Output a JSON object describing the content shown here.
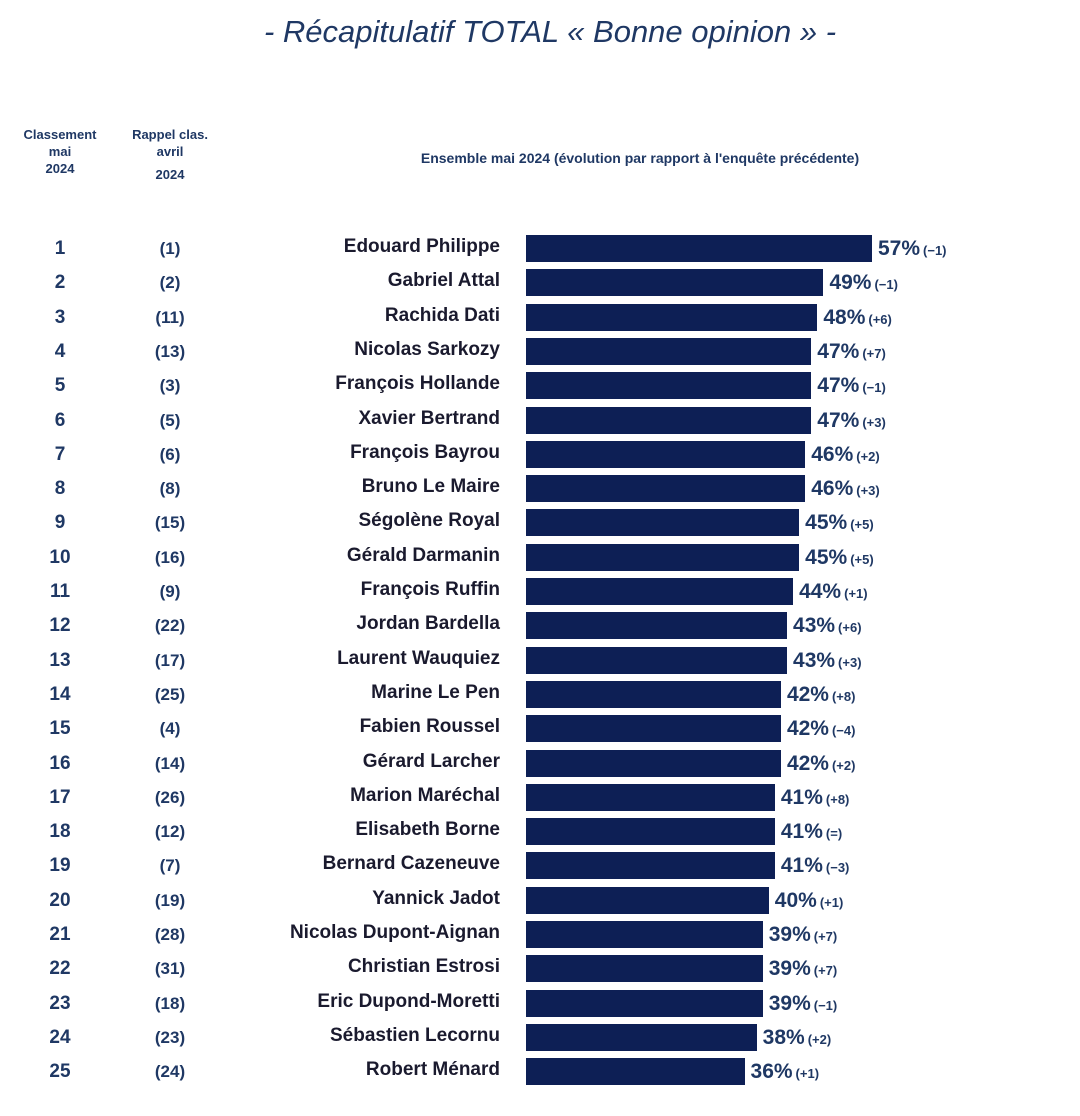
{
  "title": "- Récapitulatif TOTAL « Bonne opinion » -",
  "headers": {
    "rank_l1": "Classement",
    "rank_l2": "mai",
    "rank_l3": "2024",
    "prev_l1": "Rappel clas.",
    "prev_l2": "avril",
    "prev_l3": "2024",
    "set": "Ensemble mai 2024 (évolution par rapport à l'enquête précédente)"
  },
  "colors": {
    "bar": "#0d1f55",
    "text": "#1f3864"
  },
  "chart_data": {
    "type": "bar",
    "orientation": "horizontal",
    "title": "- Récapitulatif TOTAL « Bonne opinion » -",
    "subtitle": "Ensemble mai 2024 (évolution par rapport à l'enquête précédente)",
    "xlim": [
      0,
      57
    ],
    "grid": false,
    "rows": [
      {
        "rank": "1",
        "prev": "(1)",
        "name": "Edouard Philippe",
        "value": 57,
        "evolution": "(−1)"
      },
      {
        "rank": "2",
        "prev": "(2)",
        "name": "Gabriel Attal",
        "value": 49,
        "evolution": "(−1)"
      },
      {
        "rank": "3",
        "prev": "(11)",
        "name": "Rachida Dati",
        "value": 48,
        "evolution": "(+6)"
      },
      {
        "rank": "4",
        "prev": "(13)",
        "name": "Nicolas Sarkozy",
        "value": 47,
        "evolution": "(+7)"
      },
      {
        "rank": "5",
        "prev": "(3)",
        "name": "François Hollande",
        "value": 47,
        "evolution": "(−1)"
      },
      {
        "rank": "6",
        "prev": "(5)",
        "name": "Xavier Bertrand",
        "value": 47,
        "evolution": "(+3)"
      },
      {
        "rank": "7",
        "prev": "(6)",
        "name": "François Bayrou",
        "value": 46,
        "evolution": "(+2)"
      },
      {
        "rank": "8",
        "prev": "(8)",
        "name": "Bruno Le Maire",
        "value": 46,
        "evolution": "(+3)"
      },
      {
        "rank": "9",
        "prev": "(15)",
        "name": "Ségolène Royal",
        "value": 45,
        "evolution": "(+5)"
      },
      {
        "rank": "10",
        "prev": "(16)",
        "name": "Gérald Darmanin",
        "value": 45,
        "evolution": "(+5)"
      },
      {
        "rank": "11",
        "prev": "(9)",
        "name": "François Ruffin",
        "value": 44,
        "evolution": "(+1)"
      },
      {
        "rank": "12",
        "prev": "(22)",
        "name": "Jordan Bardella",
        "value": 43,
        "evolution": "(+6)"
      },
      {
        "rank": "13",
        "prev": "(17)",
        "name": "Laurent Wauquiez",
        "value": 43,
        "evolution": "(+3)"
      },
      {
        "rank": "14",
        "prev": "(25)",
        "name": "Marine Le Pen",
        "value": 42,
        "evolution": "(+8)"
      },
      {
        "rank": "15",
        "prev": "(4)",
        "name": "Fabien Roussel",
        "value": 42,
        "evolution": "(−4)"
      },
      {
        "rank": "16",
        "prev": "(14)",
        "name": "Gérard Larcher",
        "value": 42,
        "evolution": "(+2)"
      },
      {
        "rank": "17",
        "prev": "(26)",
        "name": "Marion Maréchal",
        "value": 41,
        "evolution": "(+8)"
      },
      {
        "rank": "18",
        "prev": "(12)",
        "name": "Elisabeth Borne",
        "value": 41,
        "evolution": "(=)"
      },
      {
        "rank": "19",
        "prev": "(7)",
        "name": "Bernard Cazeneuve",
        "value": 41,
        "evolution": "(−3)"
      },
      {
        "rank": "20",
        "prev": "(19)",
        "name": "Yannick Jadot",
        "value": 40,
        "evolution": "(+1)"
      },
      {
        "rank": "21",
        "prev": "(28)",
        "name": "Nicolas Dupont-Aignan",
        "value": 39,
        "evolution": "(+7)"
      },
      {
        "rank": "22",
        "prev": "(31)",
        "name": "Christian Estrosi",
        "value": 39,
        "evolution": "(+7)"
      },
      {
        "rank": "23",
        "prev": "(18)",
        "name": "Eric Dupond-Moretti",
        "value": 39,
        "evolution": "(−1)"
      },
      {
        "rank": "24",
        "prev": "(23)",
        "name": "Sébastien Lecornu",
        "value": 38,
        "evolution": "(+2)"
      },
      {
        "rank": "25",
        "prev": "(24)",
        "name": "Robert Ménard",
        "value": 36,
        "evolution": "(+1)"
      }
    ]
  }
}
